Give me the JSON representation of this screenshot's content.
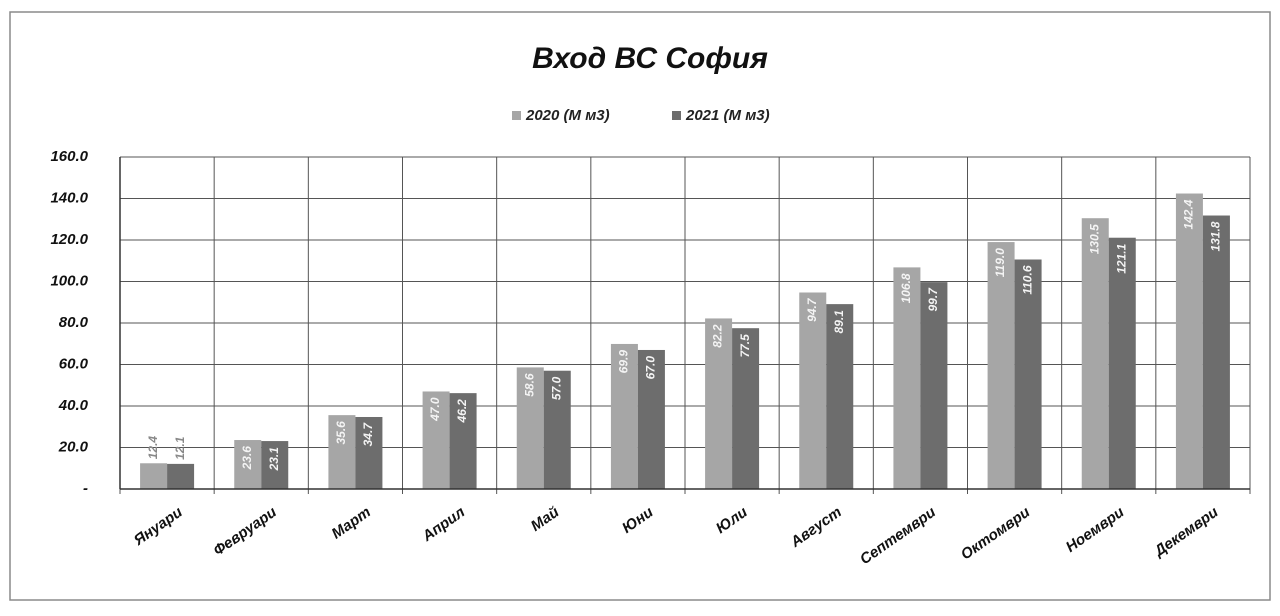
{
  "chart_data": {
    "type": "bar",
    "title": "Вход ВС София",
    "categories": [
      "Януари",
      "Февруари",
      "Март",
      "Април",
      "Май",
      "Юни",
      "Юли",
      "Август",
      "Септември",
      "Октомври",
      "Ноември",
      "Декември"
    ],
    "series": [
      {
        "name": "2020 (М м3)",
        "color": "#a6a6a6",
        "values": [
          12.4,
          23.6,
          35.6,
          47.0,
          58.6,
          69.9,
          82.2,
          94.7,
          106.8,
          119.0,
          130.5,
          142.4
        ],
        "value_labels": [
          "12.4",
          "23.6",
          "35.6",
          "47.0",
          "58.6",
          "69.9",
          "82.2",
          "94.7",
          "106.8",
          "119.0",
          "130.5",
          "142.4"
        ]
      },
      {
        "name": "2021 (М м3)",
        "color": "#6d6d6d",
        "values": [
          12.1,
          23.1,
          34.7,
          46.2,
          57.0,
          67.0,
          77.5,
          89.1,
          99.7,
          110.6,
          121.1,
          131.8
        ],
        "value_labels": [
          "12.1",
          "23.1",
          "34.7",
          "46.2",
          "57.0",
          "67.0",
          "77.5",
          "89.1",
          "99.7",
          "110.6",
          "121.1",
          "131.8"
        ]
      }
    ],
    "ylim": [
      0,
      160
    ],
    "yticks": [
      {
        "value": 0,
        "label": "-"
      },
      {
        "value": 20,
        "label": "20.0"
      },
      {
        "value": 40,
        "label": "40.0"
      },
      {
        "value": 60,
        "label": "60.0"
      },
      {
        "value": 80,
        "label": "80.0"
      },
      {
        "value": 100,
        "label": "100.0"
      },
      {
        "value": 120,
        "label": "120.0"
      },
      {
        "value": 140,
        "label": "140.0"
      },
      {
        "value": 160,
        "label": "160.0"
      }
    ],
    "grid": true,
    "legend": "top"
  }
}
